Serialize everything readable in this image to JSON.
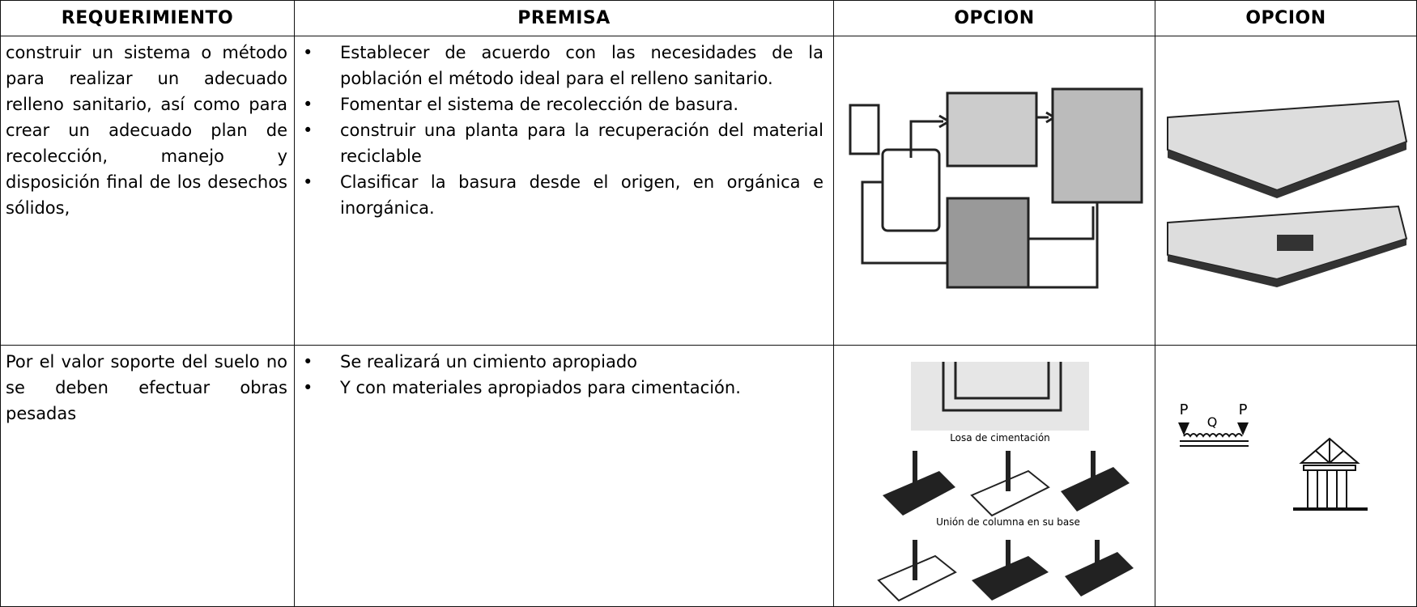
{
  "table": {
    "headers": [
      "REQUERIMIENTO",
      "PREMISA",
      "OPCION",
      "OPCION"
    ],
    "rows": [
      {
        "requirement": "construir un sistema o método para realizar un adecuado relleno sanitario, así como para crear un adecuado plan de recolección, manejo y disposición final de los desechos sólidos,",
        "premises": [
          "Establecer de acuerdo con las necesidades de la población el método ideal para el relleno sanitario.",
          "Fomentar el sistema de recolección de basura.",
          "construir una planta para la recuperación del material reciclable",
          "Clasificar la basura desde el origen, en orgánica e inorgánica."
        ]
      },
      {
        "requirement": "Por el valor soporte del suelo no se deben efectuar obras pesadas",
        "premises": [
          "Se realizará un cimiento apropiado",
          "Y con materiales  apropiados para cimentación."
        ],
        "option_1_labels": [
          "Losa de cimentación",
          "Unión de columna en su base"
        ],
        "option_2_labels": [
          "P",
          "Q",
          "P"
        ]
      }
    ]
  }
}
